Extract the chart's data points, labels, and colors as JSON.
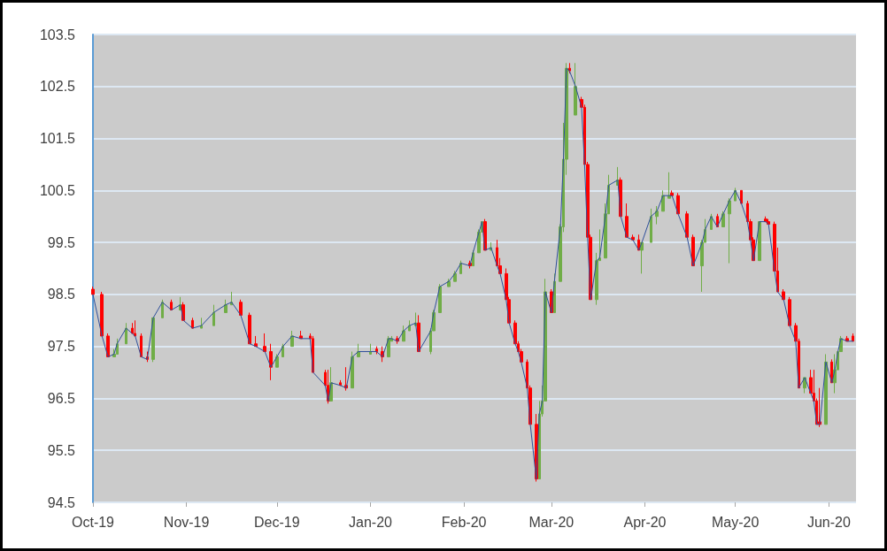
{
  "chart_data": {
    "type": "candlestick",
    "x": [
      "2019-10-01",
      "2019-10-04",
      "2019-10-06",
      "2019-10-08",
      "2019-10-09",
      "2019-10-12",
      "2019-10-14",
      "2019-10-15",
      "2019-10-17",
      "2019-10-19",
      "2019-10-21",
      "2019-10-24",
      "2019-10-27",
      "2019-10-30",
      "2019-10-31",
      "2019-11-03",
      "2019-11-06",
      "2019-11-10",
      "2019-11-14",
      "2019-11-16",
      "2019-11-19",
      "2019-11-22",
      "2019-11-24",
      "2019-11-27",
      "2019-11-29",
      "2019-12-01",
      "2019-12-03",
      "2019-12-06",
      "2019-12-09",
      "2019-12-12",
      "2019-12-13",
      "2019-12-17",
      "2019-12-18",
      "2019-12-19",
      "2019-12-22",
      "2019-12-24",
      "2019-12-26",
      "2019-12-28",
      "2020-01-01",
      "2020-01-03",
      "2020-01-05",
      "2020-01-07",
      "2020-01-08",
      "2020-01-10",
      "2020-01-12",
      "2020-01-14",
      "2020-01-16",
      "2020-01-17",
      "2020-01-21",
      "2020-01-22",
      "2020-01-24",
      "2020-01-27",
      "2020-01-29",
      "2020-01-31",
      "2020-02-03",
      "2020-02-04",
      "2020-02-06",
      "2020-02-07",
      "2020-02-08",
      "2020-02-10",
      "2020-02-12",
      "2020-02-13",
      "2020-02-15",
      "2020-02-16",
      "2020-02-18",
      "2020-02-19",
      "2020-02-20",
      "2020-02-22",
      "2020-02-23",
      "2020-02-25",
      "2020-02-26",
      "2020-02-27",
      "2020-02-28",
      "2020-03-01",
      "2020-03-02",
      "2020-03-04",
      "2020-03-05",
      "2020-03-06",
      "2020-03-07",
      "2020-03-09",
      "2020-03-11",
      "2020-03-12",
      "2020-03-13",
      "2020-03-14",
      "2020-03-16",
      "2020-03-17",
      "2020-03-19",
      "2020-03-20",
      "2020-03-23",
      "2020-03-24",
      "2020-03-26",
      "2020-03-28",
      "2020-03-30",
      "2020-03-31",
      "2020-04-03",
      "2020-04-05",
      "2020-04-07",
      "2020-04-09",
      "2020-04-10",
      "2020-04-12",
      "2020-04-15",
      "2020-04-17",
      "2020-04-20",
      "2020-04-21",
      "2020-04-23",
      "2020-04-25",
      "2020-04-27",
      "2020-04-29",
      "2020-05-01",
      "2020-05-03",
      "2020-05-05",
      "2020-05-06",
      "2020-05-07",
      "2020-05-09",
      "2020-05-11",
      "2020-05-12",
      "2020-05-14",
      "2020-05-15",
      "2020-05-17",
      "2020-05-19",
      "2020-05-21",
      "2020-05-22",
      "2020-05-24",
      "2020-05-26",
      "2020-05-27",
      "2020-05-28",
      "2020-05-29",
      "2020-05-31",
      "2020-06-02",
      "2020-06-03",
      "2020-06-04",
      "2020-06-05",
      "2020-06-07",
      "2020-06-09"
    ],
    "ohlc": [
      [
        98.6,
        98.65,
        98.5,
        98.5
      ],
      [
        98.5,
        98.55,
        97.7,
        97.7
      ],
      [
        97.7,
        97.75,
        97.3,
        97.3
      ],
      [
        97.3,
        97.45,
        97.3,
        97.35
      ],
      [
        97.35,
        97.65,
        97.35,
        97.55
      ],
      [
        97.55,
        97.95,
        97.55,
        97.85
      ],
      [
        97.85,
        97.95,
        97.75,
        97.75
      ],
      [
        97.75,
        98.0,
        97.7,
        97.7
      ],
      [
        97.7,
        97.75,
        97.3,
        97.3
      ],
      [
        97.3,
        97.4,
        97.2,
        97.25
      ],
      [
        97.25,
        98.05,
        97.2,
        98.05
      ],
      [
        98.05,
        98.4,
        98.05,
        98.35
      ],
      [
        98.35,
        98.4,
        98.2,
        98.2
      ],
      [
        98.2,
        98.45,
        98.2,
        98.3
      ],
      [
        98.3,
        98.35,
        98.0,
        98.0
      ],
      [
        98.0,
        98.05,
        97.85,
        97.85
      ],
      [
        97.85,
        98.05,
        97.85,
        97.9
      ],
      [
        97.9,
        98.3,
        97.9,
        98.15
      ],
      [
        98.15,
        98.4,
        98.15,
        98.3
      ],
      [
        98.3,
        98.55,
        98.3,
        98.35
      ],
      [
        98.35,
        98.4,
        98.1,
        98.1
      ],
      [
        98.1,
        98.15,
        97.55,
        97.55
      ],
      [
        97.55,
        97.7,
        97.5,
        97.5
      ],
      [
        97.5,
        97.75,
        97.4,
        97.4
      ],
      [
        97.4,
        97.55,
        96.85,
        97.1
      ],
      [
        97.1,
        97.35,
        97.1,
        97.3
      ],
      [
        97.3,
        97.55,
        97.3,
        97.5
      ],
      [
        97.5,
        97.8,
        97.5,
        97.7
      ],
      [
        97.7,
        97.8,
        97.65,
        97.65
      ],
      [
        97.7,
        97.75,
        97.65,
        97.65
      ],
      [
        97.65,
        97.7,
        97.0,
        97.0
      ],
      [
        97.0,
        97.05,
        96.75,
        96.75
      ],
      [
        96.75,
        97.05,
        96.4,
        96.45
      ],
      [
        96.45,
        97.1,
        96.45,
        96.8
      ],
      [
        96.8,
        96.85,
        96.75,
        96.75
      ],
      [
        96.75,
        97.1,
        96.65,
        96.7
      ],
      [
        96.7,
        97.4,
        96.7,
        97.3
      ],
      [
        97.3,
        97.55,
        97.3,
        97.4
      ],
      [
        97.35,
        97.55,
        97.35,
        97.4
      ],
      [
        97.45,
        97.5,
        97.35,
        97.4
      ],
      [
        97.4,
        97.5,
        97.2,
        97.3
      ],
      [
        97.3,
        97.7,
        97.3,
        97.65
      ],
      [
        97.6,
        97.7,
        97.6,
        97.65
      ],
      [
        97.65,
        97.7,
        97.55,
        97.6
      ],
      [
        97.6,
        97.9,
        97.6,
        97.8
      ],
      [
        97.8,
        98.0,
        97.8,
        97.9
      ],
      [
        97.9,
        98.15,
        97.9,
        97.95
      ],
      [
        97.95,
        98.1,
        97.4,
        97.4
      ],
      [
        97.4,
        97.85,
        97.35,
        97.8
      ],
      [
        97.8,
        98.2,
        97.8,
        98.15
      ],
      [
        98.15,
        98.7,
        98.15,
        98.65
      ],
      [
        98.65,
        98.8,
        98.65,
        98.75
      ],
      [
        98.75,
        98.95,
        98.75,
        98.9
      ],
      [
        98.9,
        99.15,
        98.9,
        99.1
      ],
      [
        99.1,
        99.15,
        99.0,
        99.05
      ],
      [
        99.05,
        99.35,
        99.05,
        99.3
      ],
      [
        99.3,
        99.75,
        99.3,
        99.7
      ],
      [
        99.7,
        99.9,
        99.7,
        99.9
      ],
      [
        99.9,
        99.95,
        99.35,
        99.35
      ],
      [
        99.35,
        99.5,
        99.35,
        99.4
      ],
      [
        99.4,
        99.55,
        99.05,
        99.05
      ],
      [
        99.05,
        99.2,
        98.9,
        98.9
      ],
      [
        98.9,
        99.0,
        98.4,
        98.4
      ],
      [
        98.4,
        98.45,
        97.95,
        97.95
      ],
      [
        97.95,
        98.0,
        97.55,
        97.55
      ],
      [
        97.55,
        97.6,
        97.4,
        97.4
      ],
      [
        97.4,
        97.45,
        97.2,
        97.2
      ],
      [
        97.2,
        97.25,
        96.7,
        96.7
      ],
      [
        96.7,
        96.75,
        96.0,
        96.0
      ],
      [
        96.0,
        96.2,
        94.9,
        94.95
      ],
      [
        94.95,
        96.45,
        94.95,
        96.2
      ],
      [
        96.2,
        96.75,
        96.15,
        96.45
      ],
      [
        96.45,
        98.8,
        96.45,
        98.55
      ],
      [
        98.55,
        98.6,
        98.15,
        98.15
      ],
      [
        98.15,
        98.9,
        98.15,
        98.75
      ],
      [
        98.75,
        99.85,
        98.75,
        99.8
      ],
      [
        99.8,
        101.8,
        99.7,
        101.1
      ],
      [
        101.1,
        102.95,
        100.8,
        102.85
      ],
      [
        102.85,
        102.95,
        102.75,
        102.8
      ],
      [
        101.95,
        102.95,
        101.95,
        102.5
      ],
      [
        102.25,
        102.3,
        102.1,
        102.1
      ],
      [
        102.1,
        102.15,
        101.0,
        101.0
      ],
      [
        101.0,
        101.05,
        99.6,
        99.6
      ],
      [
        99.6,
        99.65,
        98.4,
        98.4
      ],
      [
        98.4,
        99.3,
        98.3,
        99.15
      ],
      [
        99.15,
        99.75,
        99.15,
        99.2
      ],
      [
        99.2,
        100.25,
        99.2,
        100.05
      ],
      [
        100.05,
        100.8,
        100.05,
        100.6
      ],
      [
        100.6,
        100.95,
        100.6,
        100.7
      ],
      [
        100.7,
        100.75,
        100.0,
        100.0
      ],
      [
        100.0,
        100.25,
        99.6,
        99.6
      ],
      [
        99.6,
        99.65,
        99.55,
        99.55
      ],
      [
        99.55,
        99.65,
        99.35,
        99.35
      ],
      [
        99.35,
        99.5,
        98.9,
        99.5
      ],
      [
        99.5,
        100.15,
        99.5,
        100.0
      ],
      [
        100.0,
        100.2,
        99.85,
        100.1
      ],
      [
        100.1,
        100.5,
        100.1,
        100.4
      ],
      [
        100.35,
        100.85,
        100.35,
        100.4
      ],
      [
        100.45,
        100.5,
        100.4,
        100.4
      ],
      [
        100.4,
        100.45,
        100.05,
        100.05
      ],
      [
        100.05,
        100.1,
        99.6,
        99.6
      ],
      [
        99.6,
        99.65,
        99.05,
        99.05
      ],
      [
        99.05,
        99.55,
        98.55,
        99.5
      ],
      [
        99.5,
        99.95,
        99.5,
        99.75
      ],
      [
        99.75,
        100.05,
        99.75,
        100.0
      ],
      [
        100.0,
        100.05,
        99.8,
        99.8
      ],
      [
        99.8,
        100.1,
        99.8,
        100.05
      ],
      [
        100.05,
        100.35,
        99.1,
        100.3
      ],
      [
        100.3,
        100.55,
        100.3,
        100.5
      ],
      [
        100.5,
        100.5,
        100.25,
        100.25
      ],
      [
        100.25,
        100.3,
        99.9,
        99.9
      ],
      [
        99.9,
        99.95,
        99.55,
        99.55
      ],
      [
        99.55,
        99.6,
        99.15,
        99.15
      ],
      [
        99.15,
        99.9,
        99.15,
        99.9
      ],
      [
        99.95,
        100.0,
        99.9,
        99.9
      ],
      [
        99.9,
        99.95,
        99.85,
        99.85
      ],
      [
        99.85,
        99.9,
        98.95,
        98.95
      ],
      [
        98.95,
        99.4,
        98.55,
        98.55
      ],
      [
        98.55,
        98.6,
        98.4,
        98.4
      ],
      [
        98.4,
        98.45,
        97.9,
        97.9
      ],
      [
        97.9,
        97.95,
        97.6,
        97.6
      ],
      [
        97.6,
        97.65,
        96.7,
        96.7
      ],
      [
        96.7,
        96.9,
        96.6,
        96.9
      ],
      [
        96.9,
        97.05,
        96.6,
        96.6
      ],
      [
        96.6,
        97.05,
        96.45,
        96.45
      ],
      [
        96.45,
        96.5,
        96.0,
        96.0
      ],
      [
        96.05,
        96.7,
        95.95,
        96.0
      ],
      [
        96.0,
        97.35,
        96.0,
        97.2
      ],
      [
        97.2,
        97.25,
        96.8,
        96.8
      ],
      [
        96.8,
        97.35,
        96.6,
        97.05
      ],
      [
        97.05,
        97.4,
        97.05,
        97.4
      ],
      [
        97.4,
        97.7,
        97.4,
        97.65
      ],
      [
        97.65,
        97.7,
        97.6,
        97.6
      ],
      [
        97.7,
        97.75,
        97.6,
        97.6
      ]
    ],
    "colors": [
      "#ff0000",
      "#ff0000",
      "#ff0000",
      "#70ad47",
      "#70ad47",
      "#70ad47",
      "#ff0000",
      "#ff0000",
      "#ff0000",
      "#ff0000",
      "#70ad47",
      "#70ad47",
      "#ff0000",
      "#70ad47",
      "#ff0000",
      "#ff0000",
      "#70ad47",
      "#70ad47",
      "#70ad47",
      "#70ad47",
      "#ff0000",
      "#ff0000",
      "#ff0000",
      "#ff0000",
      "#ff0000",
      "#70ad47",
      "#70ad47",
      "#70ad47",
      "#ff0000",
      "#ff0000",
      "#ff0000",
      "#ff0000",
      "#ff0000",
      "#70ad47",
      "#ff0000",
      "#ff0000",
      "#70ad47",
      "#70ad47",
      "#70ad47",
      "#ff0000",
      "#ff0000",
      "#70ad47",
      "#70ad47",
      "#ff0000",
      "#70ad47",
      "#70ad47",
      "#70ad47",
      "#ff0000",
      "#70ad47",
      "#70ad47",
      "#70ad47",
      "#70ad47",
      "#70ad47",
      "#70ad47",
      "#ff0000",
      "#70ad47",
      "#70ad47",
      "#70ad47",
      "#ff0000",
      "#70ad47",
      "#ff0000",
      "#ff0000",
      "#ff0000",
      "#ff0000",
      "#ff0000",
      "#ff0000",
      "#ff0000",
      "#ff0000",
      "#ff0000",
      "#ff0000",
      "#70ad47",
      "#70ad47",
      "#70ad47",
      "#ff0000",
      "#70ad47",
      "#70ad47",
      "#70ad47",
      "#70ad47",
      "#ff0000",
      "#70ad47",
      "#ff0000",
      "#ff0000",
      "#ff0000",
      "#ff0000",
      "#70ad47",
      "#70ad47",
      "#70ad47",
      "#70ad47",
      "#70ad47",
      "#ff0000",
      "#ff0000",
      "#ff0000",
      "#ff0000",
      "#70ad47",
      "#70ad47",
      "#70ad47",
      "#70ad47",
      "#70ad47",
      "#ff0000",
      "#ff0000",
      "#ff0000",
      "#ff0000",
      "#70ad47",
      "#70ad47",
      "#70ad47",
      "#ff0000",
      "#70ad47",
      "#70ad47",
      "#70ad47",
      "#ff0000",
      "#ff0000",
      "#ff0000",
      "#ff0000",
      "#70ad47",
      "#ff0000",
      "#ff0000",
      "#ff0000",
      "#ff0000",
      "#ff0000",
      "#ff0000",
      "#ff0000",
      "#ff0000",
      "#70ad47",
      "#ff0000",
      "#ff0000",
      "#ff0000",
      "#ff0000",
      "#70ad47",
      "#ff0000",
      "#70ad47",
      "#70ad47",
      "#70ad47",
      "#ff0000",
      "#ff0000"
    ],
    "series": [
      {
        "type": "line",
        "color": "#2e4f9a",
        "values": [
          98.5,
          97.7,
          97.3,
          97.35,
          97.55,
          97.85,
          97.75,
          97.7,
          97.3,
          97.25,
          98.05,
          98.35,
          98.2,
          98.3,
          98.0,
          97.85,
          97.9,
          98.15,
          98.3,
          98.35,
          98.1,
          97.55,
          97.5,
          97.4,
          97.1,
          97.3,
          97.5,
          97.7,
          97.65,
          97.65,
          97.0,
          96.75,
          96.45,
          96.8,
          96.75,
          96.7,
          97.3,
          97.4,
          97.4,
          97.4,
          97.3,
          97.65,
          97.65,
          97.6,
          97.8,
          97.9,
          97.95,
          97.4,
          97.8,
          98.15,
          98.65,
          98.75,
          98.9,
          99.1,
          99.05,
          99.3,
          99.7,
          99.9,
          99.35,
          99.4,
          99.05,
          98.9,
          98.4,
          97.95,
          97.55,
          97.4,
          97.2,
          96.7,
          96.0,
          94.95,
          96.2,
          96.45,
          98.55,
          98.15,
          98.75,
          99.8,
          101.1,
          102.85,
          102.8,
          102.5,
          102.1,
          101.0,
          99.6,
          98.4,
          99.15,
          99.2,
          100.05,
          100.6,
          100.7,
          100.0,
          99.6,
          99.55,
          99.35,
          99.5,
          100.0,
          100.1,
          100.4,
          100.4,
          100.4,
          100.05,
          99.6,
          99.05,
          99.5,
          99.75,
          100.0,
          99.8,
          100.05,
          100.3,
          100.5,
          100.25,
          99.9,
          99.55,
          99.15,
          99.9,
          99.9,
          99.85,
          98.95,
          98.55,
          98.4,
          97.9,
          97.6,
          96.7,
          96.9,
          96.6,
          96.45,
          96.0,
          96.0,
          97.2,
          96.8,
          97.05,
          97.4,
          97.65,
          97.6,
          97.6
        ]
      }
    ],
    "xlim": [
      "2019-10-01",
      "2020-06-10"
    ],
    "xticks": [
      {
        "value": "2019-10-01",
        "label": "Oct-19"
      },
      {
        "value": "2019-11-01",
        "label": "Nov-19"
      },
      {
        "value": "2019-12-01",
        "label": "Dec-19"
      },
      {
        "value": "2020-01-01",
        "label": "Jan-20"
      },
      {
        "value": "2020-02-01",
        "label": "Feb-20"
      },
      {
        "value": "2020-03-01",
        "label": "Mar-20"
      },
      {
        "value": "2020-04-01",
        "label": "Apr-20"
      },
      {
        "value": "2020-05-01",
        "label": "May-20"
      },
      {
        "value": "2020-06-01",
        "label": "Jun-20"
      }
    ],
    "ylim": [
      94.5,
      103.5
    ],
    "yticks": [
      94.5,
      95.5,
      96.5,
      97.5,
      98.5,
      99.5,
      100.5,
      101.5,
      102.5,
      103.5
    ],
    "grid": "y"
  }
}
